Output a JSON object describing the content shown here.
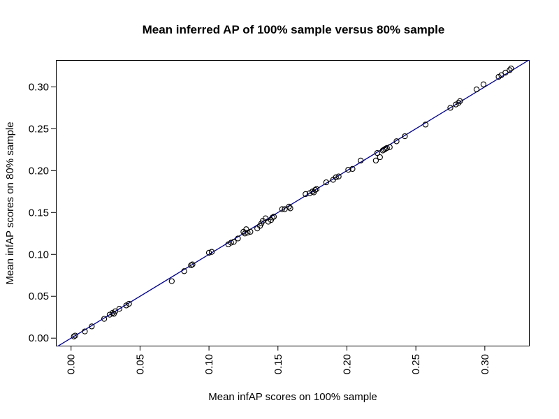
{
  "chart_data": {
    "type": "scatter",
    "title": "Mean inferred AP of 100% sample versus 80% sample",
    "xlabel": "Mean infAP scores on 100% sample",
    "ylabel": "Mean infAP scores on 80% sample",
    "xlim": [
      -0.011,
      0.332
    ],
    "ylim": [
      -0.009,
      0.332
    ],
    "xticks": [
      0.0,
      0.05,
      0.1,
      0.15,
      0.2,
      0.25,
      0.3
    ],
    "xtick_labels": [
      "0.00",
      "0.05",
      "0.10",
      "0.15",
      "0.20",
      "0.25",
      "0.30"
    ],
    "yticks": [
      0.0,
      0.05,
      0.1,
      0.15,
      0.2,
      0.25,
      0.3
    ],
    "ytick_labels": [
      "0.00",
      "0.05",
      "0.10",
      "0.15",
      "0.20",
      "0.25",
      "0.30"
    ],
    "grid": false,
    "reference_line": {
      "slope": 1,
      "intercept": 0,
      "color": "#00008b"
    },
    "point_style": "open-circle",
    "series": [
      {
        "points": [
          [
            0.002,
            0.002
          ],
          [
            0.003,
            0.003
          ],
          [
            0.01,
            0.008
          ],
          [
            0.015,
            0.014
          ],
          [
            0.024,
            0.023
          ],
          [
            0.028,
            0.028
          ],
          [
            0.03,
            0.03
          ],
          [
            0.032,
            0.032
          ],
          [
            0.031,
            0.029
          ],
          [
            0.035,
            0.035
          ],
          [
            0.04,
            0.039
          ],
          [
            0.042,
            0.041
          ],
          [
            0.073,
            0.068
          ],
          [
            0.082,
            0.08
          ],
          [
            0.087,
            0.087
          ],
          [
            0.088,
            0.088
          ],
          [
            0.1,
            0.102
          ],
          [
            0.102,
            0.103
          ],
          [
            0.114,
            0.112
          ],
          [
            0.116,
            0.114
          ],
          [
            0.118,
            0.115
          ],
          [
            0.121,
            0.119
          ],
          [
            0.125,
            0.127
          ],
          [
            0.126,
            0.125
          ],
          [
            0.127,
            0.13
          ],
          [
            0.128,
            0.126
          ],
          [
            0.13,
            0.127
          ],
          [
            0.135,
            0.131
          ],
          [
            0.137,
            0.134
          ],
          [
            0.138,
            0.137
          ],
          [
            0.139,
            0.14
          ],
          [
            0.141,
            0.143
          ],
          [
            0.143,
            0.139
          ],
          [
            0.145,
            0.141
          ],
          [
            0.146,
            0.144
          ],
          [
            0.147,
            0.145
          ],
          [
            0.153,
            0.154
          ],
          [
            0.155,
            0.154
          ],
          [
            0.158,
            0.157
          ],
          [
            0.159,
            0.155
          ],
          [
            0.17,
            0.172
          ],
          [
            0.173,
            0.173
          ],
          [
            0.175,
            0.175
          ],
          [
            0.176,
            0.174
          ],
          [
            0.177,
            0.177
          ],
          [
            0.178,
            0.178
          ],
          [
            0.185,
            0.186
          ],
          [
            0.19,
            0.189
          ],
          [
            0.192,
            0.192
          ],
          [
            0.194,
            0.193
          ],
          [
            0.201,
            0.201
          ],
          [
            0.204,
            0.202
          ],
          [
            0.21,
            0.212
          ],
          [
            0.221,
            0.212
          ],
          [
            0.222,
            0.221
          ],
          [
            0.224,
            0.216
          ],
          [
            0.226,
            0.224
          ],
          [
            0.227,
            0.225
          ],
          [
            0.228,
            0.226
          ],
          [
            0.229,
            0.227
          ],
          [
            0.231,
            0.228
          ],
          [
            0.236,
            0.235
          ],
          [
            0.242,
            0.241
          ],
          [
            0.257,
            0.255
          ],
          [
            0.275,
            0.275
          ],
          [
            0.279,
            0.279
          ],
          [
            0.281,
            0.281
          ],
          [
            0.282,
            0.283
          ],
          [
            0.294,
            0.297
          ],
          [
            0.299,
            0.303
          ],
          [
            0.31,
            0.312
          ],
          [
            0.312,
            0.314
          ],
          [
            0.315,
            0.317
          ],
          [
            0.318,
            0.32
          ],
          [
            0.319,
            0.322
          ]
        ]
      }
    ]
  }
}
